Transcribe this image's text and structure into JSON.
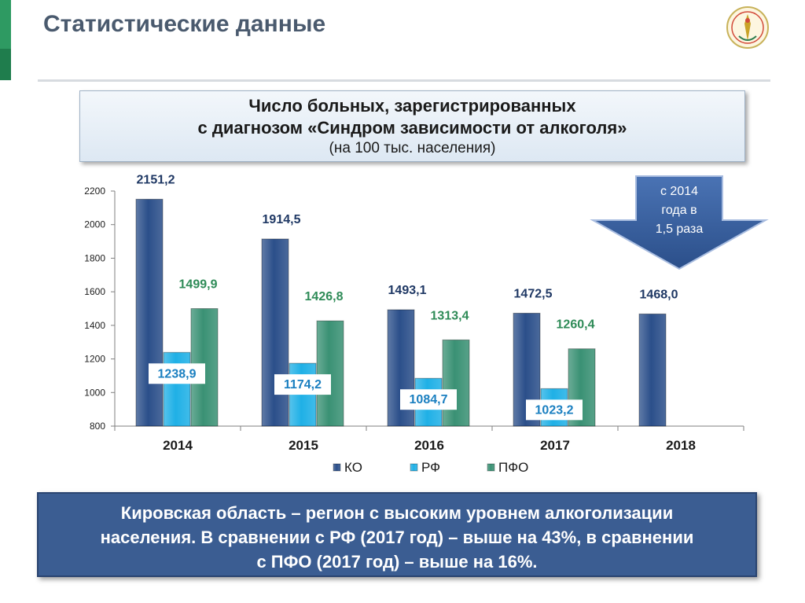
{
  "page": {
    "title": "Статистические данные",
    "header": {
      "line1": "Число больных, зарегистрированных",
      "line2": "с диагнозом «Синдром зависимости от алкоголя»",
      "line3": "(на 100 тыс. населения)"
    },
    "callout": {
      "line1": "с 2014",
      "line2": "года в",
      "line3": "1,5 раза"
    },
    "conclusion": {
      "line1": "Кировская область – регион с высоким уровнем алкоголизации",
      "line2": "населения. В сравнении с РФ (2017 год) – выше на 43%, в сравнении",
      "line3": "с ПФО (2017 год) – выше на 16%."
    }
  },
  "chart_data": {
    "type": "bar",
    "categories": [
      "2014",
      "2015",
      "2016",
      "2017",
      "2018"
    ],
    "series": [
      {
        "name": "КО",
        "color": "#2b4f8a",
        "values": [
          2151.2,
          1914.5,
          1493.1,
          1472.5,
          1468.0
        ],
        "labels": [
          "2151,2",
          "1914,5",
          "1493,1",
          "1472,5",
          "1468,0"
        ],
        "label_color": "#1f3864"
      },
      {
        "name": "РФ",
        "color": "#1fb0e6",
        "values": [
          1238.9,
          1174.2,
          1084.7,
          1023.2,
          null
        ],
        "labels": [
          "1238,9",
          "1174,2",
          "1084,7",
          "1023,2",
          ""
        ],
        "label_color": "#1a7fc0"
      },
      {
        "name": "ПФО",
        "color": "#3a9174",
        "values": [
          1499.9,
          1426.8,
          1313.4,
          1260.4,
          null
        ],
        "labels": [
          "1499,9",
          "1426,8",
          "1313,4",
          "1260,4",
          ""
        ],
        "label_color": "#2e8b57"
      }
    ],
    "ylim": [
      800,
      2200
    ],
    "yticks": [
      "800",
      "1000",
      "1200",
      "1400",
      "1600",
      "1800",
      "2000",
      "2200"
    ],
    "ytick_values": [
      800,
      1000,
      1200,
      1400,
      1600,
      1800,
      2000,
      2200
    ],
    "grid": false,
    "legend": "bottom"
  }
}
